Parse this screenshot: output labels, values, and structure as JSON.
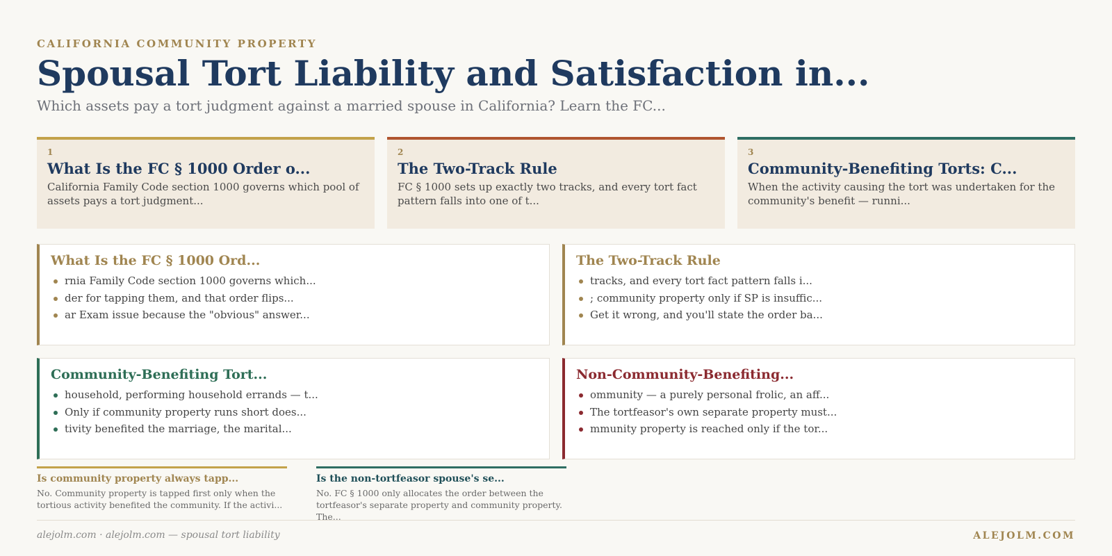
{
  "header": {
    "eyebrow": "CALIFORNIA COMMUNITY PROPERTY",
    "title": "Spousal Tort Liability and Satisfaction in...",
    "subtitle": "Which assets pay a tort judgment against a married spouse in California? Learn the FC..."
  },
  "cards": [
    {
      "num": "1",
      "title": "What Is the FC § 1000 Order o...",
      "body": "California Family Code section 1000 governs which pool of assets pays a tort judgment..."
    },
    {
      "num": "2",
      "title": "The Two-Track Rule",
      "body": "FC § 1000 sets up exactly two tracks, and every tort fact pattern falls into one of t..."
    },
    {
      "num": "3",
      "title": "Community-Benefiting Torts: C...",
      "body": "When the activity causing the tort was undertaken for the community's benefit — runni..."
    }
  ],
  "panels": [
    {
      "title": "What Is the FC § 1000 Ord...",
      "bullets": [
        "rnia Family Code section 1000 governs which...",
        "der for tapping them, and that order flips...",
        "ar Exam issue because the \"obvious\" answer..."
      ]
    },
    {
      "title": "The Two-Track Rule",
      "bullets": [
        "tracks, and every tort fact pattern falls i...",
        "; community property only if SP is insuffic...",
        "Get it wrong, and you'll state the order ba..."
      ]
    },
    {
      "title": "Community-Benefiting Tort...",
      "bullets": [
        "household, performing household errands — t...",
        "Only if community property runs short does...",
        "tivity benefited the marriage, the marital..."
      ]
    },
    {
      "title": "Non-Community-Benefiting...",
      "bullets": [
        "ommunity — a purely personal frolic, an aff...",
        "The tortfeasor's own separate property must...",
        "mmunity property is reached only if the tor..."
      ]
    }
  ],
  "faqs": [
    {
      "q": "Is community property always tapp...",
      "a": "No. Community property is tapped first only when the tortious activity benefited the community. If the activi..."
    },
    {
      "q": "Is the non-tortfeasor spouse's se...",
      "a": "No. FC § 1000 only allocates the order between the tortfeasor's separate property and community property. The..."
    }
  ],
  "footer": {
    "left": "alejolm.com · alejolm.com — spousal tort liability",
    "right": "ALEJOLM.COM"
  },
  "colors": {
    "background": "#f9f8f4",
    "navy": "#1f3a5f",
    "gold": "#a08550",
    "green": "#2e6e56",
    "red": "#8b2a30",
    "rust": "#b0552f"
  }
}
